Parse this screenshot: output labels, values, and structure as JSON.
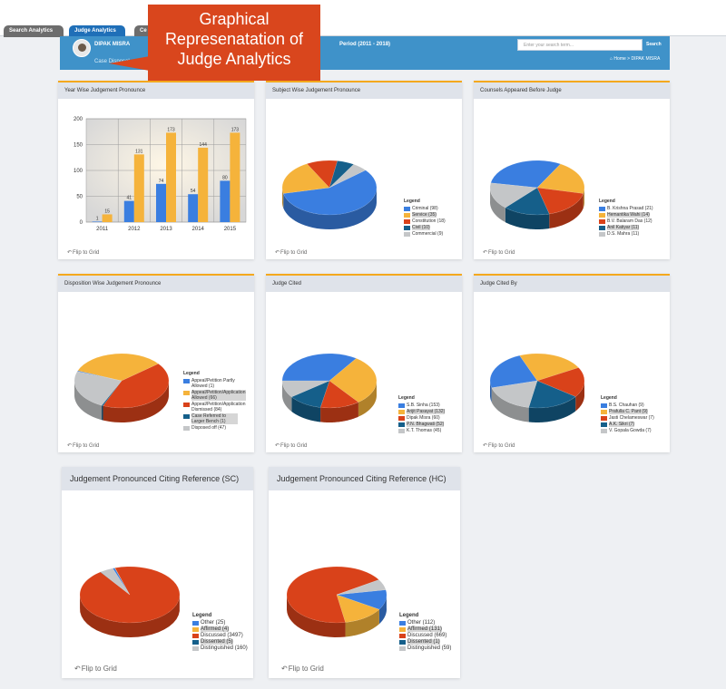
{
  "tabs": [
    "Search Analytics",
    "Judge Analytics",
    "Ce"
  ],
  "header": {
    "user_name": "DIPAK MISRA",
    "case_disposal": "Case Disposal",
    "period": "Period (2011 - 2018)",
    "search_placeholder": "Enter your search term...",
    "search_button": "Search",
    "breadcrumb_home": "Home",
    "breadcrumb_sep": ">",
    "breadcrumb_current": "DIPAK MISRA"
  },
  "callout": {
    "line1": "Graphical",
    "line2": "Represenatation of",
    "line3": "Judge Analytics"
  },
  "flip_label": "Flip to Grid",
  "legend_title": "Legend",
  "colors": {
    "blue": "#3a7ee0",
    "orange": "#f5b33b",
    "red": "#d9421a",
    "teal": "#155f8a",
    "gray": "#c4c6c8",
    "accent": "#f4a81d"
  },
  "panels": {
    "year_wise": {
      "title": "Year Wise Judgement Pronounce"
    },
    "subject_wise": {
      "title": "Subject Wise Judgement Pronounce"
    },
    "counsels": {
      "title": "Counsels Appeared Before Judge"
    },
    "disposition": {
      "title": "Disposition Wise Judgement Pronounce"
    },
    "judge_cited": {
      "title": "Judge Cited"
    },
    "judge_cited_by": {
      "title": "Judge Cited By"
    },
    "citing_sc": {
      "title": "Judgement Pronounced Citing Reference (SC)"
    },
    "citing_hc": {
      "title": "Judgement Pronounced Citing Reference (HC)"
    }
  },
  "chart_data": [
    {
      "type": "bar",
      "categories": [
        "2011",
        "2012",
        "2013",
        "2014",
        "2015"
      ],
      "series": [
        {
          "values": [
            1,
            41,
            74,
            54,
            80
          ]
        },
        {
          "values": [
            15,
            131,
            173,
            144,
            173
          ]
        }
      ],
      "xlabel": "Year",
      "ylim": [
        0,
        200
      ],
      "yticks": [
        0,
        50,
        100,
        150,
        200
      ]
    },
    {
      "type": "pie",
      "slices": [
        {
          "label": "Criminal (98)",
          "value": 98
        },
        {
          "label": "Service (35)",
          "value": 35
        },
        {
          "label": "Constitution (18)",
          "value": 18
        },
        {
          "label": "Civil (10)",
          "value": 10
        },
        {
          "label": "Commercial (9)",
          "value": 9
        }
      ]
    },
    {
      "type": "pie",
      "slices": [
        {
          "label": "B. Krishna Prasad (21)",
          "value": 21
        },
        {
          "label": "Hemantika Wahi (14)",
          "value": 14
        },
        {
          "label": "B.V. Balaram Das (12)",
          "value": 12
        },
        {
          "label": "Anil Katiyar (11)",
          "value": 11
        },
        {
          "label": "D.S. Mahra (11)",
          "value": 11
        }
      ]
    },
    {
      "type": "pie",
      "slices": [
        {
          "label": "Appeal/Petition Partly Allowed (1)",
          "value": 1
        },
        {
          "label": "Appeal/Petition/Application Allowed (66)",
          "value": 66
        },
        {
          "label": "Appeal/Petition/Application Dismissed (84)",
          "value": 84
        },
        {
          "label": "Case Referred to Larger Bench (1)",
          "value": 1
        },
        {
          "label": "Disposed off (47)",
          "value": 47
        }
      ]
    },
    {
      "type": "pie",
      "slices": [
        {
          "label": "S.B. Sinha (153)",
          "value": 153
        },
        {
          "label": "Arijit Pasayat (132)",
          "value": 132
        },
        {
          "label": "Dipak Misra (60)",
          "value": 60
        },
        {
          "label": "P.N. Bhagwati (52)",
          "value": 52
        },
        {
          "label": "K.T. Thomas (45)",
          "value": 45
        }
      ]
    },
    {
      "type": "pie",
      "slices": [
        {
          "label": "B.S. Chauhan (9)",
          "value": 9
        },
        {
          "label": "Prafulla C. Pant (9)",
          "value": 9
        },
        {
          "label": "Jasti Chelameswar (7)",
          "value": 7
        },
        {
          "label": "A.K. Sikri (7)",
          "value": 7
        },
        {
          "label": "V. Gopala Gowda (7)",
          "value": 7
        }
      ]
    },
    {
      "type": "pie",
      "slices": [
        {
          "label": "Other (25)",
          "value": 25
        },
        {
          "label": "Affirmed (4)",
          "value": 4
        },
        {
          "label": "Discussed (3497)",
          "value": 3497
        },
        {
          "label": "Dissented (5)",
          "value": 5
        },
        {
          "label": "Distinguished (160)",
          "value": 160
        }
      ]
    },
    {
      "type": "pie",
      "slices": [
        {
          "label": "Other (112)",
          "value": 112
        },
        {
          "label": "Affirmed (131)",
          "value": 131
        },
        {
          "label": "Discussed (669)",
          "value": 669
        },
        {
          "label": "Dissented (1)",
          "value": 1
        },
        {
          "label": "Distinguished (59)",
          "value": 59
        }
      ]
    }
  ]
}
